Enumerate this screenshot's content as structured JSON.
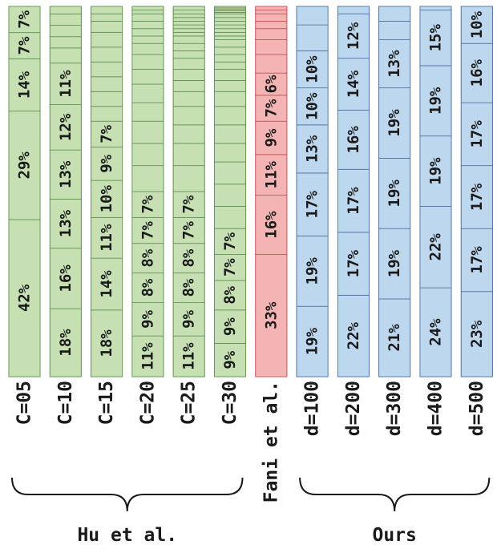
{
  "chart_data": {
    "type": "bar",
    "stacked": true,
    "normalized": true,
    "colors": {
      "Hu et al.": "#c6e0b4",
      "Fani et al.": "#f4b4b4",
      "Ours": "#bdd7ee"
    },
    "stroke_colors": {
      "Hu et al.": "#5e8f4b",
      "Fani et al.": "#c05050",
      "Ours": "#4a6fa0"
    },
    "groups": [
      {
        "label": "Hu et al.",
        "columns": [
          0,
          1,
          2,
          3,
          4,
          5
        ]
      },
      {
        "label": "",
        "columns": [
          6
        ]
      },
      {
        "label": "Ours",
        "columns": [
          7,
          8,
          9,
          10,
          11
        ]
      }
    ],
    "columns": [
      {
        "label": "C=05",
        "group": "Hu et al.",
        "segments": [
          42,
          29,
          14,
          7,
          7
        ],
        "labels": [
          "42%",
          "29%",
          "14%",
          "7%",
          "7%"
        ]
      },
      {
        "label": "C=10",
        "group": "Hu et al.",
        "segments": [
          18,
          16,
          13,
          13,
          12,
          11,
          4,
          3,
          3,
          3,
          2
        ],
        "labels": [
          "18%",
          "16%",
          "13%",
          "13%",
          "12%",
          "11%"
        ]
      },
      {
        "label": "C=15",
        "group": "Hu et al.",
        "segments": [
          18,
          14,
          11,
          10,
          9,
          7,
          4,
          4,
          4,
          4,
          4,
          4,
          3,
          2,
          2
        ],
        "labels": [
          "18%",
          "14%",
          "11%",
          "10%",
          "9%",
          "7%"
        ]
      },
      {
        "label": "C=20",
        "group": "Hu et al.",
        "segments": [
          11,
          9,
          8,
          8,
          7,
          7,
          7,
          6,
          6,
          5,
          5,
          4,
          4,
          3,
          2,
          2,
          2,
          2,
          1,
          1
        ],
        "labels": [
          "11%",
          "9%",
          "8%",
          "8%",
          "7%",
          "7%"
        ]
      },
      {
        "label": "C=25",
        "group": "Hu et al.",
        "segments": [
          11,
          9,
          8,
          8,
          7,
          7,
          7,
          6,
          5,
          5,
          4,
          3,
          3,
          3,
          2,
          2,
          2,
          1,
          1,
          1,
          1,
          1,
          1,
          1,
          1
        ],
        "labels": [
          "11%",
          "9%",
          "8%",
          "8%",
          "7%",
          "7%"
        ]
      },
      {
        "label": "C=30",
        "group": "Hu et al.",
        "segments": [
          9,
          9,
          8,
          7,
          7,
          6,
          6,
          6,
          5,
          5,
          5,
          4,
          3,
          3,
          2,
          2,
          2,
          2,
          1,
          1,
          1,
          1,
          1,
          1,
          1,
          0.4,
          0.4,
          0.4,
          0.4,
          0.4
        ],
        "labels": [
          "9%",
          "9%",
          "8%",
          "7%",
          "7%"
        ]
      },
      {
        "label": "Fani et al.",
        "group": "Fani et al.",
        "segments": [
          33,
          16,
          11,
          9,
          7,
          6,
          5,
          4,
          3,
          2,
          2,
          1,
          1
        ],
        "labels": [
          "33%",
          "16%",
          "11%",
          "9%",
          "7%",
          "6%"
        ]
      },
      {
        "label": "d=100",
        "group": "Ours",
        "segments": [
          19,
          19,
          17,
          13,
          10,
          10,
          7,
          5
        ],
        "labels": [
          "19%",
          "19%",
          "17%",
          "13%",
          "10%",
          "10%"
        ]
      },
      {
        "label": "d=200",
        "group": "Ours",
        "segments": [
          22,
          17,
          17,
          16,
          14,
          12,
          2
        ],
        "labels": [
          "22%",
          "17%",
          "17%",
          "16%",
          "14%",
          "12%"
        ]
      },
      {
        "label": "d=300",
        "group": "Ours",
        "segments": [
          21,
          19,
          19,
          19,
          13,
          5,
          4
        ],
        "labels": [
          "21%",
          "19%",
          "19%",
          "19%",
          "13%"
        ]
      },
      {
        "label": "d=400",
        "group": "Ours",
        "segments": [
          24,
          22,
          19,
          19,
          15,
          1
        ],
        "labels": [
          "24%",
          "22%",
          "19%",
          "19%",
          "15%"
        ]
      },
      {
        "label": "d=500",
        "group": "Ours",
        "segments": [
          23,
          17,
          17,
          17,
          16,
          10
        ],
        "labels": [
          "23%",
          "17%",
          "17%",
          "17%",
          "16%",
          "10%"
        ]
      }
    ]
  }
}
